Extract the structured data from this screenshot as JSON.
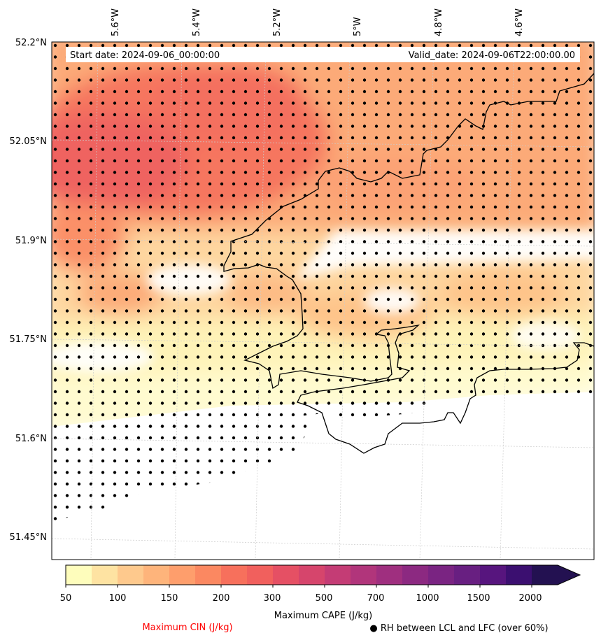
{
  "header": {
    "start_date": "Start date: 2024-09-06_00:00:00",
    "valid_date": "Valid_date: 2024-09-06T22:00:00.00"
  },
  "map": {
    "lon_labels": [
      "5.6°W",
      "5.4°W",
      "5.2°W",
      "5°W",
      "4.8°W",
      "4.6°W"
    ],
    "lat_labels": [
      "52.2°N",
      "52.05°N",
      "51.9°N",
      "51.75°N",
      "51.6°N",
      "51.45°N"
    ],
    "coastline_color": "#000000",
    "gridline_color": "#cccccc",
    "stipple_color": "#000000"
  },
  "colorbar": {
    "label": "Maximum CAPE (J/kg)",
    "tick_labels": [
      "50",
      "100",
      "150",
      "200",
      "300",
      "500",
      "700",
      "1000",
      "1500",
      "2000"
    ],
    "colors": [
      "#fefdbc",
      "#fee3a2",
      "#fec98d",
      "#feb47b",
      "#fe9e6c",
      "#fb8861",
      "#f7705c",
      "#f1605d",
      "#e55064",
      "#d6456c",
      "#c43c75",
      "#b1357b",
      "#9f2f7f",
      "#8c2981",
      "#7a2482",
      "#681f81",
      "#57157e",
      "#3b0f70",
      "#231151"
    ],
    "extend": "max"
  },
  "footer": {
    "cin_label": "Maximum CIN (J/kg)",
    "cin_color": "#ff0000",
    "rh_label": "● RH between LCL and LFC (over 60%)"
  }
}
